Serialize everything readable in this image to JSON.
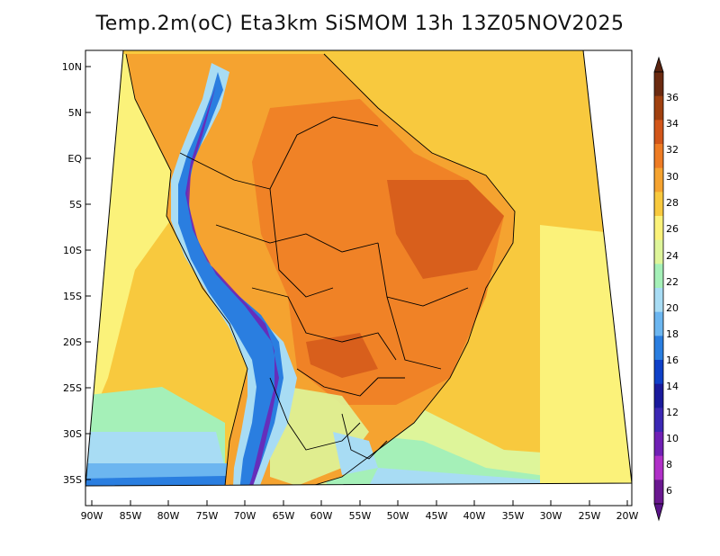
{
  "title": "Temp.2m(oC) Eta3km SiSMOM 13h 13Z05NOV2025",
  "lat_ticks": [
    "10N",
    "5N",
    "EQ",
    "5S",
    "10S",
    "15S",
    "20S",
    "25S",
    "30S",
    "35S"
  ],
  "lon_ticks": [
    "90W",
    "85W",
    "80W",
    "75W",
    "70W",
    "65W",
    "60W",
    "55W",
    "50W",
    "45W",
    "40W",
    "35W",
    "30W",
    "25W",
    "20W"
  ],
  "colorbar": {
    "labels": [
      "36",
      "34",
      "32",
      "30",
      "28",
      "26",
      "24",
      "22",
      "20",
      "18",
      "16",
      "14",
      "12",
      "10",
      "8",
      "6"
    ],
    "colors": [
      "#6b2a10",
      "#a0400f",
      "#d2561a",
      "#ee7c24",
      "#f5a330",
      "#f8c93e",
      "#fbf27a",
      "#def59a",
      "#a5f0b8",
      "#a8dcf4",
      "#6cb6f0",
      "#2a7ee0",
      "#0f40c8",
      "#1a1a9c",
      "#3c28b4",
      "#7020b4",
      "#b030c8",
      "#6a1890"
    ],
    "top_cap_color": "#5a2410",
    "bottom_cap_color": "#5a1488"
  }
}
